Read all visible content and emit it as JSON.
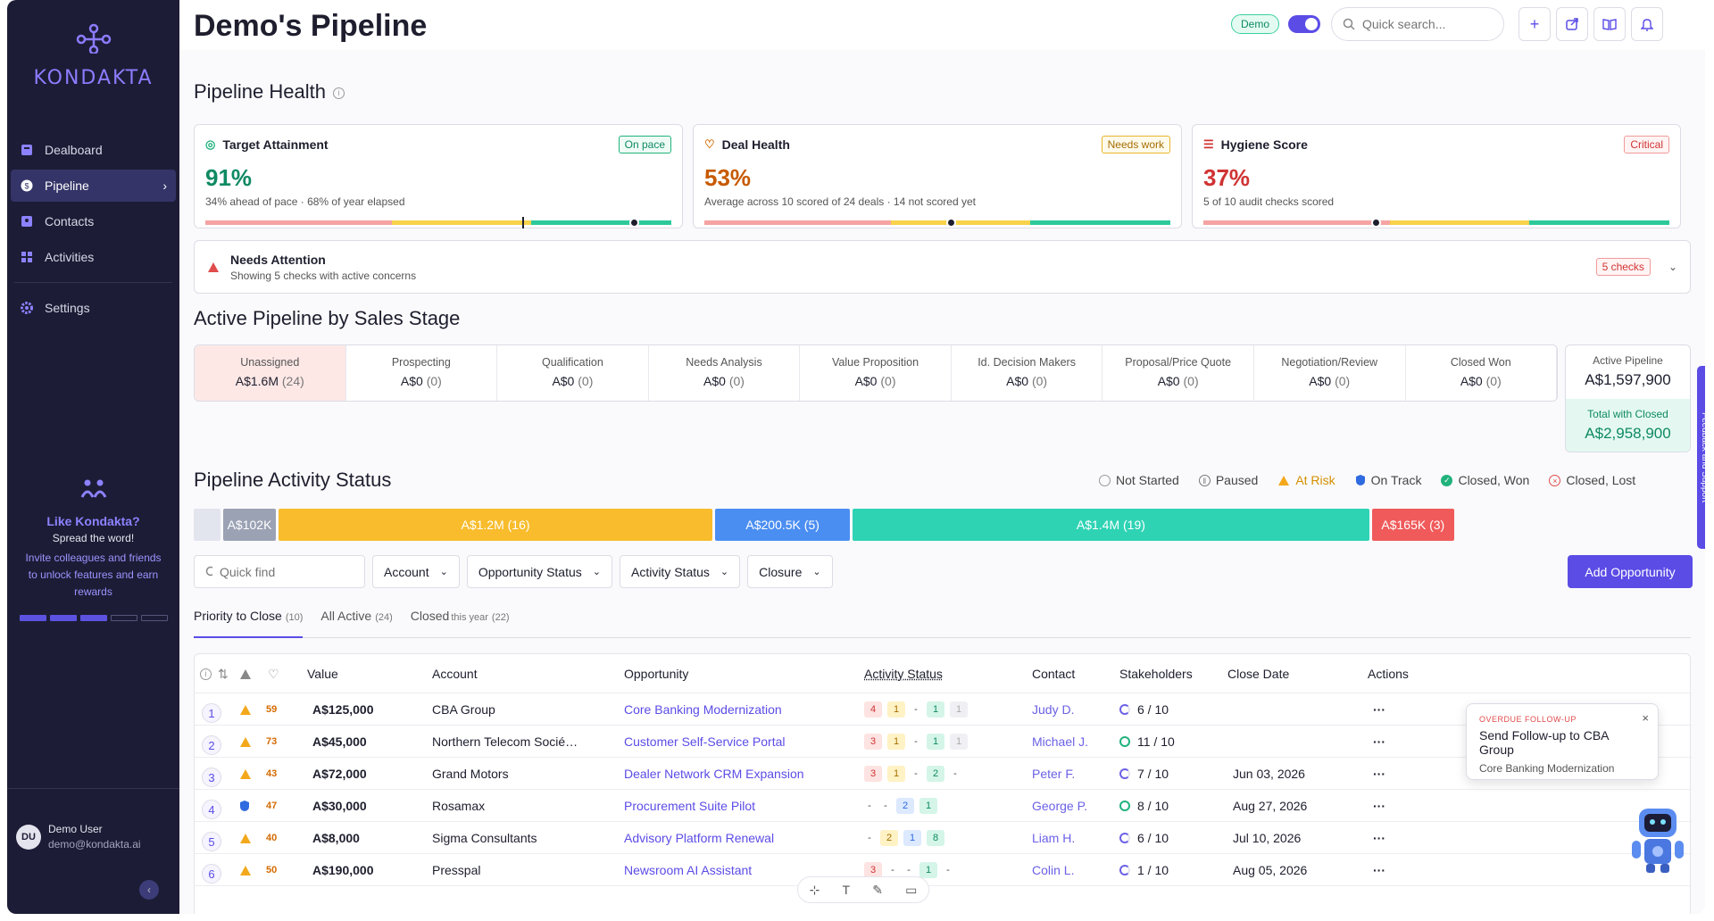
{
  "app": {
    "logo_text": "KONDAKTA"
  },
  "sidebar": {
    "items": [
      {
        "label": "Dealboard",
        "icon": "dashboard-icon"
      },
      {
        "label": "Pipeline",
        "icon": "pipeline-icon",
        "active": true
      },
      {
        "label": "Contacts",
        "icon": "contacts-icon"
      },
      {
        "label": "Activities",
        "icon": "activities-icon"
      }
    ],
    "settings_label": "Settings",
    "promo": {
      "title": "Like Kondakta?",
      "subtitle": "Spread the word!",
      "description": "Invite colleagues and friends to unlock features and earn rewards",
      "progress_filled": 3,
      "progress_total": 5
    },
    "user": {
      "initials": "DU",
      "name": "Demo User",
      "email": "demo@kondakta.ai"
    }
  },
  "header": {
    "title": "Demo's Pipeline",
    "demo_badge": "Demo",
    "search_placeholder": "Quick search..."
  },
  "health": {
    "title": "Pipeline Health",
    "cards": [
      {
        "title": "Target Attainment",
        "badge": "On pace",
        "value": "91%",
        "subtitle": "34% ahead of pace · 68% of year elapsed",
        "marker": 0.91
      },
      {
        "title": "Deal Health",
        "badge": "Needs work",
        "value": "53%",
        "subtitle": "Average across 10 scored of 24 deals · 14 not scored yet",
        "marker": 0.53
      },
      {
        "title": "Hygiene Score",
        "badge": "Critical",
        "value": "37%",
        "subtitle": "5 of 10 audit checks scored",
        "marker": 0.37
      }
    ],
    "attention": {
      "title": "Needs Attention",
      "subtitle": "Showing 5 checks with active concerns",
      "badge": "5 checks"
    }
  },
  "stages": {
    "title": "Active Pipeline by Sales Stage",
    "items": [
      {
        "name": "Unassigned",
        "value": "A$1.6M",
        "count": "(24)"
      },
      {
        "name": "Prospecting",
        "value": "A$0",
        "count": "(0)"
      },
      {
        "name": "Qualification",
        "value": "A$0",
        "count": "(0)"
      },
      {
        "name": "Needs Analysis",
        "value": "A$0",
        "count": "(0)"
      },
      {
        "name": "Value Proposition",
        "value": "A$0",
        "count": "(0)"
      },
      {
        "name": "Id. Decision Makers",
        "value": "A$0",
        "count": "(0)"
      },
      {
        "name": "Proposal/Price Quote",
        "value": "A$0",
        "count": "(0)"
      },
      {
        "name": "Negotiation/Review",
        "value": "A$0",
        "count": "(0)"
      },
      {
        "name": "Closed Won",
        "value": "A$0",
        "count": "(0)"
      }
    ],
    "active_label": "Active Pipeline",
    "active_value": "A$1,597,900",
    "closed_label": "Total with Closed",
    "closed_value": "A$2,958,900"
  },
  "activity": {
    "title": "Pipeline Activity Status",
    "legend": [
      "Not Started",
      "Paused",
      "At Risk",
      "On Track",
      "Closed, Won",
      "Closed, Lost"
    ],
    "bar": [
      {
        "label": "",
        "color": "#e2e4ee",
        "share": 0.018
      },
      {
        "label": "A$102K",
        "color": "#9ba2b4",
        "share": 0.035
      },
      {
        "label": "A$1.2M (16)",
        "color": "#f8bc2c",
        "share": 0.29
      },
      {
        "label": "A$200.5K (5)",
        "color": "#4b8ef2",
        "share": 0.09
      },
      {
        "label": "A$1.4M (19)",
        "color": "#2ed3b4",
        "share": 0.345
      },
      {
        "label": "A$165K (3)",
        "color": "#f05a5a",
        "share": 0.055
      }
    ]
  },
  "filters": {
    "quick_placeholder": "Quick find",
    "account": "Account",
    "opportunity_status": "Opportunity Status",
    "activity_status": "Activity Status",
    "closure": "Closure",
    "add_button": "Add Opportunity"
  },
  "tabs": [
    {
      "label": "Priority to Close",
      "count": "(10)"
    },
    {
      "label": "All Active",
      "count": "(24)"
    },
    {
      "label": "Closed",
      "meta": "this year",
      "count": "(22)"
    }
  ],
  "table": {
    "headers": {
      "value": "Value",
      "account": "Account",
      "opportunity": "Opportunity",
      "activity": "Activity Status",
      "contact": "Contact",
      "stakeholders": "Stakeholders",
      "close_date": "Close Date",
      "actions": "Actions"
    },
    "rows": [
      {
        "n": "1",
        "score": "59",
        "value": "A$125,000",
        "account": "CBA Group",
        "opportunity": "Core Banking Modernization",
        "chips": [
          "4",
          "1",
          "-",
          "1",
          "1"
        ],
        "contact": "Judy D.",
        "stake": "6 / 10",
        "date": "",
        "risk": "warn"
      },
      {
        "n": "2",
        "score": "73",
        "value": "A$45,000",
        "account": "Northern Telecom Socié…",
        "opportunity": "Customer Self-Service Portal",
        "chips": [
          "3",
          "1",
          "-",
          "1",
          "1"
        ],
        "contact": "Michael J.",
        "stake": "11 / 10",
        "date": "",
        "risk": "warn"
      },
      {
        "n": "3",
        "score": "43",
        "value": "A$72,000",
        "account": "Grand Motors",
        "opportunity": "Dealer Network CRM Expansion",
        "chips": [
          "3",
          "1",
          "-",
          "2",
          "-"
        ],
        "contact": "Peter F.",
        "stake": "7 / 10",
        "date": "Jun 03, 2026",
        "risk": "warn"
      },
      {
        "n": "4",
        "score": "47",
        "value": "A$30,000",
        "account": "Rosamax",
        "opportunity": "Procurement Suite Pilot",
        "chips": [
          "-",
          "-",
          "2",
          "1",
          ""
        ],
        "contact": "George P.",
        "stake": "8 / 10",
        "date": "Aug 27, 2026",
        "risk": "ok"
      },
      {
        "n": "5",
        "score": "40",
        "value": "A$8,000",
        "account": "Sigma Consultants",
        "opportunity": "Advisory Platform Renewal",
        "chips": [
          "-",
          "2",
          "1",
          "8",
          ""
        ],
        "contact": "Liam H.",
        "stake": "6 / 10",
        "date": "Jul 10, 2026",
        "risk": "warn"
      },
      {
        "n": "6",
        "score": "50",
        "value": "A$190,000",
        "account": "Presspal",
        "opportunity": "Newsroom AI Assistant",
        "chips": [
          "3",
          "-",
          "-",
          "1",
          "-"
        ],
        "contact": "Colin L.",
        "stake": "1 / 10",
        "date": "Aug 05, 2026",
        "risk": "warn"
      }
    ]
  },
  "tooltip": {
    "tag": "OVERDUE FOLLOW-UP",
    "title": "Send Follow-up to CBA Group",
    "subtitle": "Core Banking Modernization"
  },
  "feedback_label": "Feedback and Support",
  "colors": {
    "accent": "#5b4ce6",
    "sidebar": "#1c1c36",
    "green": "#21b27c",
    "yellow": "#f8bc2c",
    "red": "#f05a5a"
  }
}
